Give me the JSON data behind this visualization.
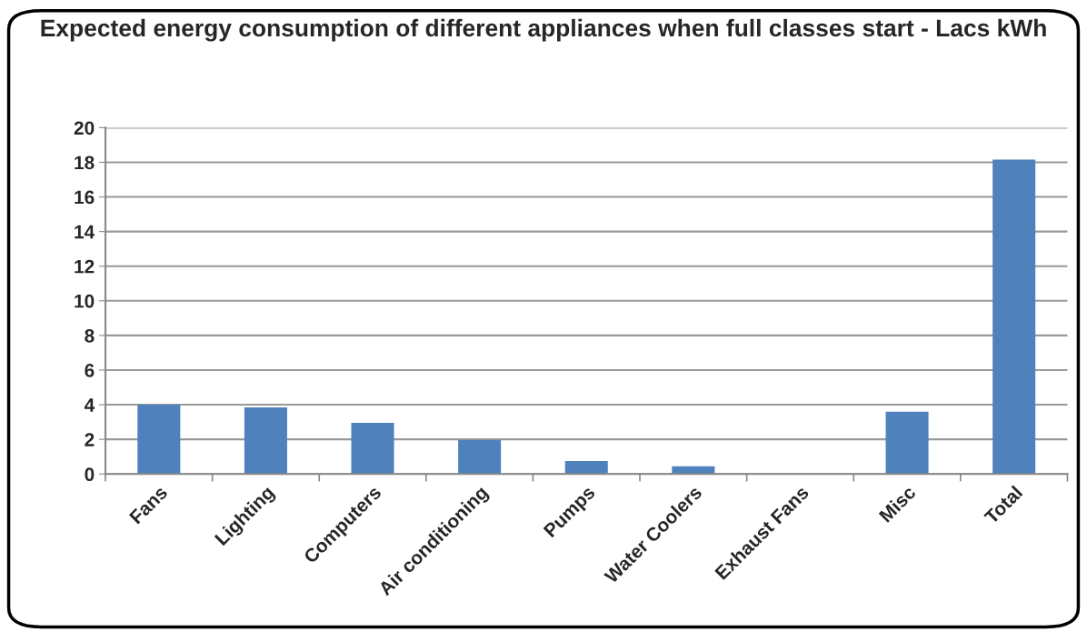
{
  "chart_data": {
    "type": "bar",
    "title": "Expected energy consumption of different appliances when full classes start - Lacs kWh",
    "categories": [
      "Fans",
      "Lighting",
      "Computers",
      "Air conditioning",
      "Pumps",
      "Water Coolers",
      "Exhaust Fans",
      "Misc",
      "Total"
    ],
    "values": [
      4.0,
      3.85,
      2.95,
      1.95,
      0.75,
      0.45,
      0,
      3.6,
      18.15
    ],
    "color": "#4f81bd",
    "ylim": [
      0,
      20
    ],
    "yticks": [
      0,
      2,
      4,
      6,
      8,
      10,
      12,
      14,
      16,
      18,
      20
    ],
    "grid": "y",
    "legend": false
  }
}
